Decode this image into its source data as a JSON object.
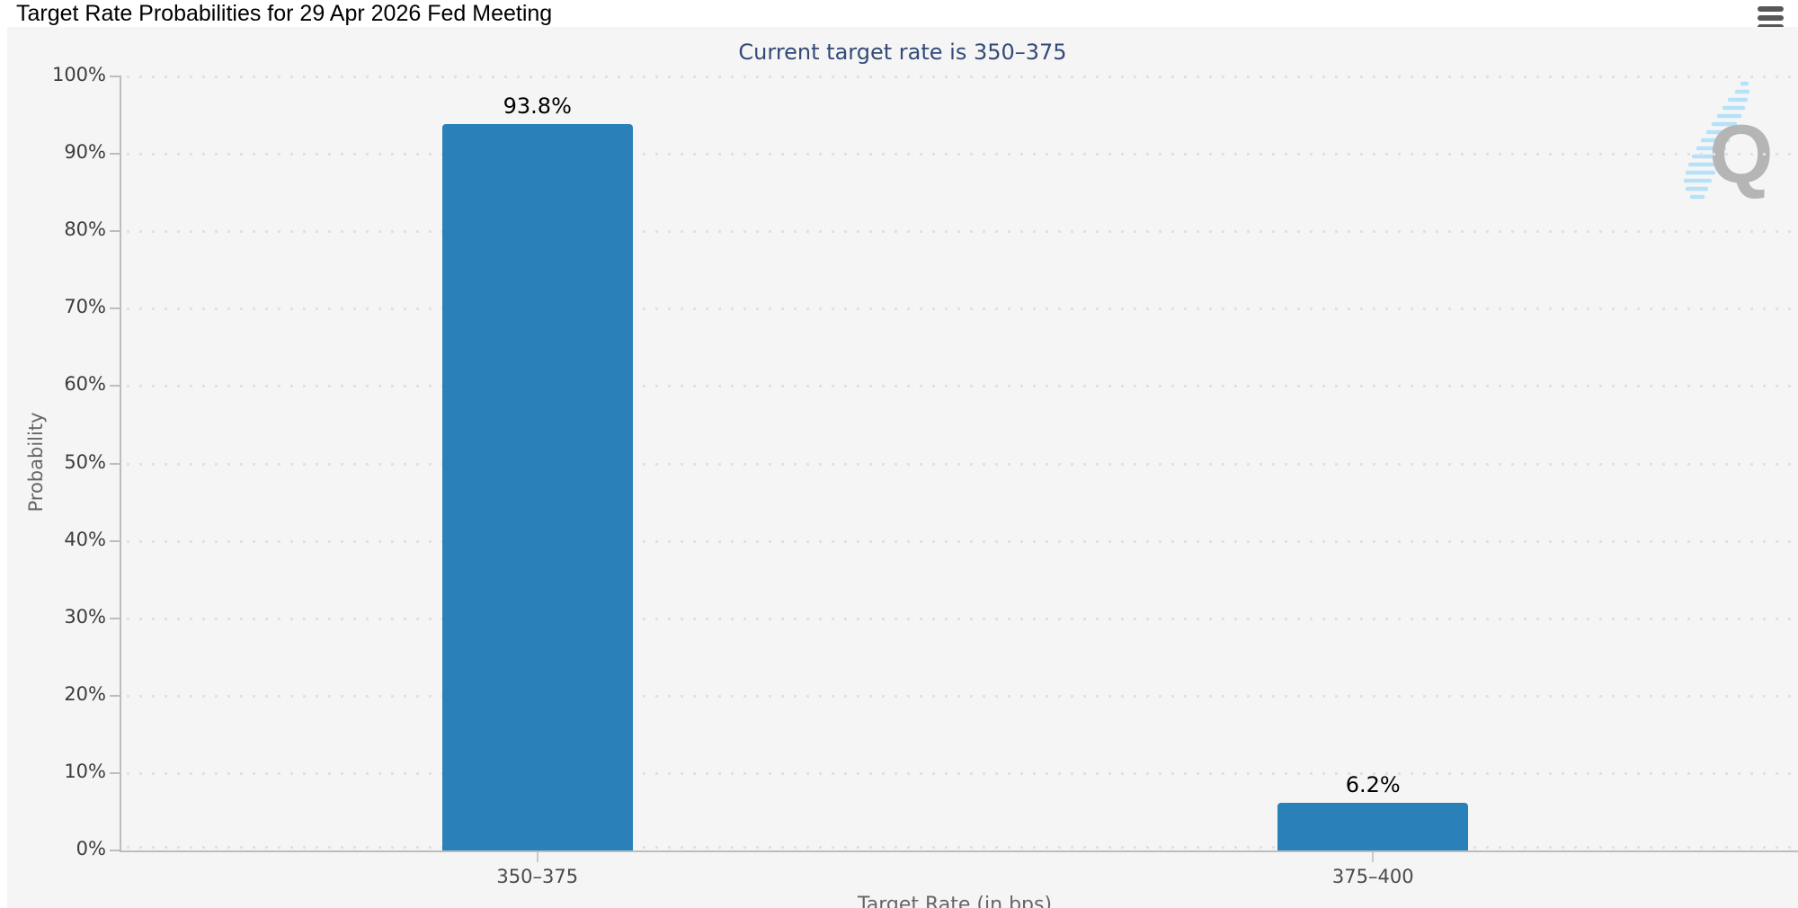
{
  "header": {
    "menu_icon": "hamburger-menu-icon"
  },
  "chart_data": {
    "type": "bar",
    "title": "Target Rate Probabilities for 29 Apr 2026 Fed Meeting",
    "subtitle": "Current target rate is 350–375",
    "categories": [
      "350–375",
      "375–400"
    ],
    "values": [
      93.8,
      6.2
    ],
    "value_labels": [
      "93.8%",
      "6.2%"
    ],
    "xlabel": "Target Rate (in bps)",
    "ylabel": "Probability",
    "ylim": [
      0,
      100
    ],
    "ytick_step": 10,
    "ytick_labels": [
      "0%",
      "10%",
      "20%",
      "30%",
      "40%",
      "50%",
      "60%",
      "70%",
      "80%",
      "90%",
      "100%"
    ],
    "grid": "dotted horizontal lines at each 10%",
    "legend": "none",
    "bar_color": "#2a80b9",
    "background_color": "#f5f5f5",
    "subtitle_color": "#344b77",
    "watermark_letter": "Q"
  }
}
